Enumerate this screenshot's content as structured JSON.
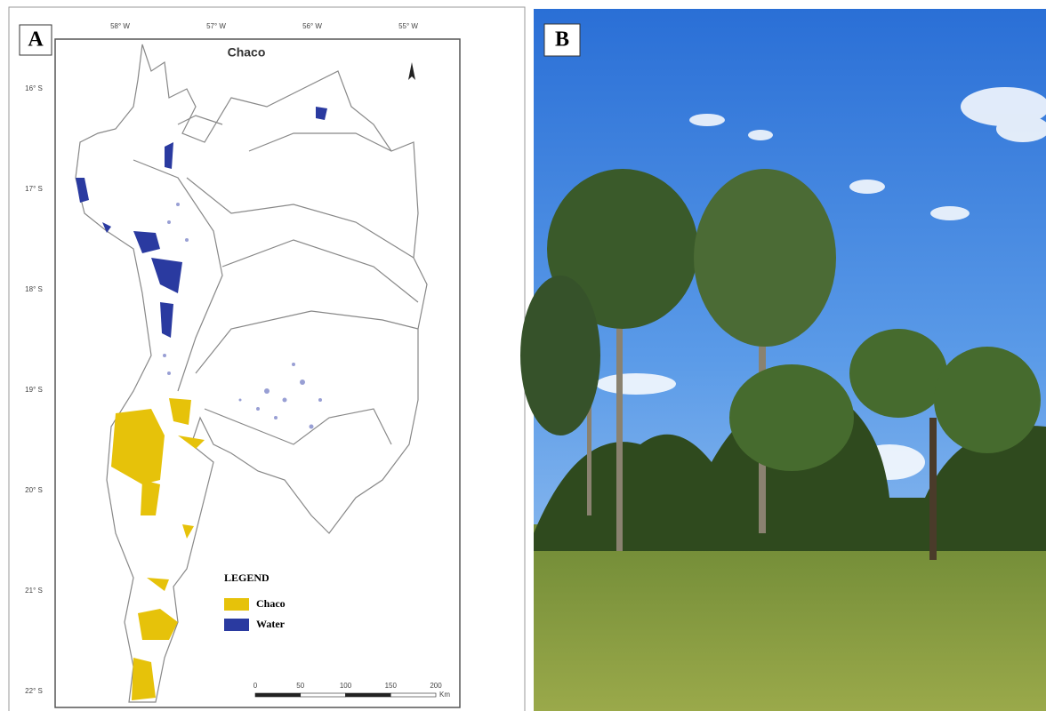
{
  "panel_a": {
    "label": "A",
    "title": "Chaco",
    "longitude_labels": [
      "58° W",
      "57° W",
      "56° W",
      "55° W"
    ],
    "latitude_labels": [
      "16° S",
      "17° S",
      "18° S",
      "19° S",
      "20° S",
      "21° S",
      "22° S"
    ],
    "legend": {
      "title": "LEGEND",
      "items": [
        {
          "name": "Chaco",
          "color": "#e6c20a"
        },
        {
          "name": "Water",
          "color": "#2a3aa0"
        }
      ]
    },
    "scale_bar": {
      "labels": [
        "0",
        "50",
        "100",
        "150",
        "200"
      ],
      "unit": "Km"
    }
  },
  "panel_b": {
    "label": "B"
  }
}
